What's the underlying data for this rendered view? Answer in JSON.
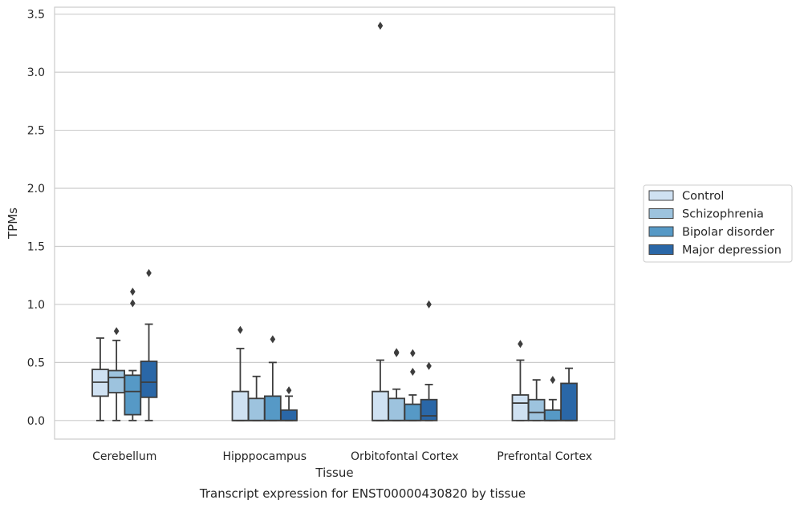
{
  "chart_data": {
    "type": "boxplot",
    "xlabel": "Tissue",
    "ylabel": "TPMs",
    "caption": "Transcript expression for ENST00000430820 by tissue",
    "categories": [
      "Cerebellum",
      "Hipppocampus",
      "Orbitofontal Cortex",
      "Prefrontal Cortex"
    ],
    "ylim": [
      -0.16,
      3.56
    ],
    "yticks": [
      0.0,
      0.5,
      1.0,
      1.5,
      2.0,
      2.5,
      3.0,
      3.5
    ],
    "ytick_labels": [
      "0.0",
      "0.5",
      "1.0",
      "1.5",
      "2.0",
      "2.5",
      "3.0",
      "3.5"
    ],
    "grid": "horizontal",
    "legend_position": "right",
    "series": [
      {
        "name": "Control",
        "color": "#cfe1f2",
        "boxes": [
          {
            "min": 0.0,
            "q1": 0.21,
            "median": 0.33,
            "q3": 0.44,
            "max": 0.71,
            "outliers": []
          },
          {
            "min": 0.0,
            "q1": 0.0,
            "median": 0.0,
            "q3": 0.25,
            "max": 0.62,
            "outliers": [
              0.78
            ]
          },
          {
            "min": 0.0,
            "q1": 0.0,
            "median": 0.0,
            "q3": 0.25,
            "max": 0.52,
            "outliers": [
              3.4
            ]
          },
          {
            "min": 0.0,
            "q1": 0.0,
            "median": 0.15,
            "q3": 0.22,
            "max": 0.52,
            "outliers": [
              0.66
            ]
          }
        ]
      },
      {
        "name": "Schizophrenia",
        "color": "#9dc3de",
        "boxes": [
          {
            "min": 0.0,
            "q1": 0.24,
            "median": 0.37,
            "q3": 0.43,
            "max": 0.69,
            "outliers": [
              0.77
            ]
          },
          {
            "min": 0.0,
            "q1": 0.0,
            "median": 0.0,
            "q3": 0.19,
            "max": 0.38,
            "outliers": []
          },
          {
            "min": 0.0,
            "q1": 0.0,
            "median": 0.0,
            "q3": 0.19,
            "max": 0.27,
            "outliers": [
              0.58,
              0.59
            ]
          },
          {
            "min": 0.0,
            "q1": 0.0,
            "median": 0.07,
            "q3": 0.18,
            "max": 0.35,
            "outliers": []
          }
        ]
      },
      {
        "name": "Bipolar disorder",
        "color": "#5699c6",
        "boxes": [
          {
            "min": 0.0,
            "q1": 0.05,
            "median": 0.25,
            "q3": 0.39,
            "max": 0.43,
            "outliers": [
              1.01,
              1.11
            ]
          },
          {
            "min": 0.0,
            "q1": 0.0,
            "median": 0.0,
            "q3": 0.21,
            "max": 0.5,
            "outliers": [
              0.7
            ]
          },
          {
            "min": 0.0,
            "q1": 0.0,
            "median": 0.0,
            "q3": 0.14,
            "max": 0.22,
            "outliers": [
              0.42,
              0.58
            ]
          },
          {
            "min": 0.0,
            "q1": 0.0,
            "median": 0.0,
            "q3": 0.09,
            "max": 0.18,
            "outliers": [
              0.35
            ]
          }
        ]
      },
      {
        "name": "Major depression",
        "color": "#2a67a7",
        "boxes": [
          {
            "min": 0.0,
            "q1": 0.2,
            "median": 0.33,
            "q3": 0.51,
            "max": 0.83,
            "outliers": [
              1.27
            ]
          },
          {
            "min": 0.0,
            "q1": 0.0,
            "median": 0.0,
            "q3": 0.09,
            "max": 0.21,
            "outliers": [
              0.26
            ]
          },
          {
            "min": 0.0,
            "q1": 0.0,
            "median": 0.04,
            "q3": 0.18,
            "max": 0.31,
            "outliers": [
              0.47,
              1.0
            ]
          },
          {
            "min": 0.0,
            "q1": 0.0,
            "median": 0.0,
            "q3": 0.32,
            "max": 0.45,
            "outliers": []
          }
        ]
      }
    ]
  }
}
